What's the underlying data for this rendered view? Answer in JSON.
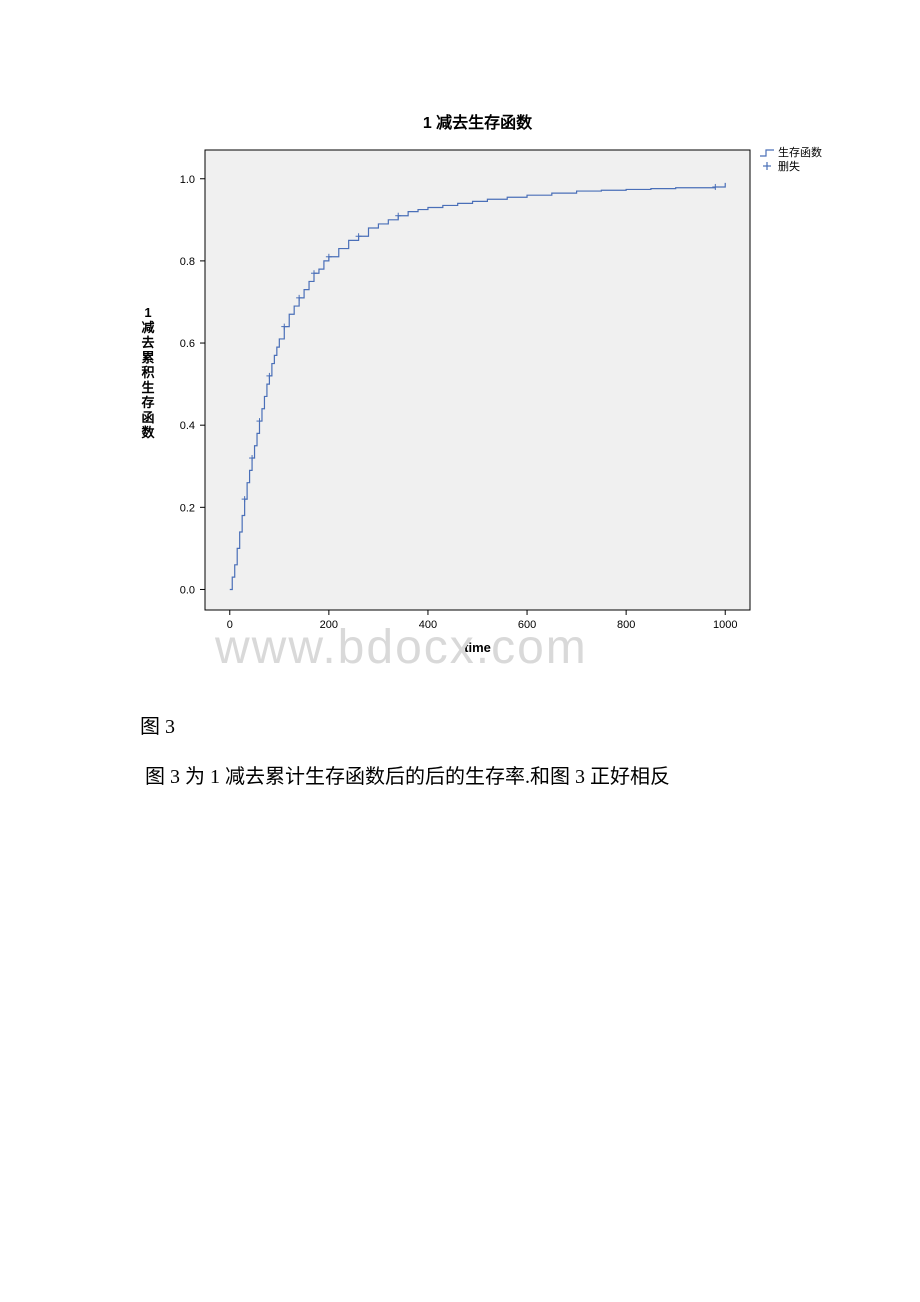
{
  "chart": {
    "type": "line",
    "title": "1 减去生存函数",
    "title_fontsize": 16,
    "title_weight": "bold",
    "xlabel": "time",
    "xlabel_fontsize": 13,
    "xlabel_weight": "bold",
    "ylabel": "1减去累积生存函数",
    "ylabel_fontsize": 13,
    "ylabel_weight": "bold",
    "xlim": [
      -50,
      1050
    ],
    "ylim": [
      -0.05,
      1.07
    ],
    "xticks": [
      0,
      200,
      400,
      600,
      800,
      1000
    ],
    "yticks": [
      0.0,
      0.2,
      0.4,
      0.6,
      0.8,
      1.0
    ],
    "tick_fontsize": 11,
    "background_color": "#ffffff",
    "plot_bg_color": "#f0f0f0",
    "border_color": "#000000",
    "line_color": "#4a6fb8",
    "line_width": 1.2,
    "series": {
      "x": [
        0,
        5,
        10,
        15,
        20,
        25,
        30,
        35,
        40,
        45,
        50,
        55,
        60,
        65,
        70,
        75,
        80,
        85,
        90,
        95,
        100,
        110,
        120,
        130,
        140,
        150,
        160,
        170,
        180,
        190,
        200,
        220,
        240,
        260,
        280,
        300,
        320,
        340,
        360,
        380,
        400,
        430,
        460,
        490,
        520,
        560,
        600,
        650,
        700,
        750,
        800,
        850,
        900,
        950,
        980,
        1000
      ],
      "y": [
        0.0,
        0.03,
        0.06,
        0.1,
        0.14,
        0.18,
        0.22,
        0.26,
        0.29,
        0.32,
        0.35,
        0.38,
        0.41,
        0.44,
        0.47,
        0.5,
        0.52,
        0.55,
        0.57,
        0.59,
        0.61,
        0.64,
        0.67,
        0.69,
        0.71,
        0.73,
        0.75,
        0.77,
        0.78,
        0.8,
        0.81,
        0.83,
        0.85,
        0.86,
        0.88,
        0.89,
        0.9,
        0.91,
        0.92,
        0.925,
        0.93,
        0.935,
        0.94,
        0.945,
        0.95,
        0.955,
        0.96,
        0.965,
        0.97,
        0.972,
        0.974,
        0.976,
        0.978,
        0.978,
        0.98,
        0.99
      ]
    },
    "censored_marks": {
      "x": [
        30,
        45,
        60,
        80,
        110,
        140,
        170,
        200,
        260,
        340,
        980
      ],
      "y": [
        0.22,
        0.32,
        0.41,
        0.52,
        0.64,
        0.71,
        0.77,
        0.81,
        0.86,
        0.91,
        0.98
      ]
    },
    "legend": {
      "position": "right-outside",
      "items": [
        {
          "label": "生存函数",
          "type": "step-line",
          "color": "#4a6fb8"
        },
        {
          "label": "删失",
          "type": "plus-mark",
          "color": "#4a6fb8"
        }
      ],
      "fontsize": 11
    }
  },
  "caption1": "图 3",
  "caption2": "图 3 为 1 减去累计生存函数后的后的生存率.和图 3 正好相反",
  "watermark": "www.bdocx.com"
}
